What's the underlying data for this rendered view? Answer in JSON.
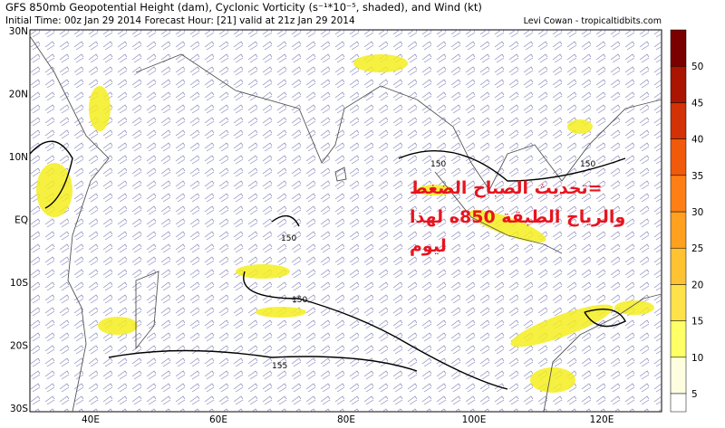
{
  "header": {
    "title": "GFS 850mb Geopotential Height (dam), Cyclonic Vorticity (s⁻¹*10⁻⁵, shaded), and Wind (kt)",
    "subtitle": "Initial Time: 00z Jan 29 2014 Forecast Hour: [21] valid at 21z Jan 29 2014",
    "credit": "Levi Cowan - tropicaltidbits.com"
  },
  "map": {
    "lat_labels": [
      "30N",
      "20N",
      "10N",
      "EQ",
      "10S",
      "20S",
      "30S"
    ],
    "lon_labels": [
      "40E",
      "60E",
      "80E",
      "100E",
      "120E"
    ],
    "contour_labels": [
      "150",
      "150",
      "150",
      "150",
      "155"
    ]
  },
  "colorbar": {
    "labels": [
      "5",
      "10",
      "15",
      "20",
      "25",
      "30",
      "35",
      "40",
      "45",
      "50"
    ],
    "colors": [
      "#fffde0",
      "#ffff66",
      "#ffe14a",
      "#ffc232",
      "#ffa01e",
      "#ff7f14",
      "#f05a0a",
      "#d23205",
      "#aa1400",
      "#7a0000"
    ]
  },
  "overlay": {
    "lines": [
      "=تحديث الصباح الضغط",
      "والرياح الطبقة 850ه لهذا",
      "ليوم"
    ]
  }
}
